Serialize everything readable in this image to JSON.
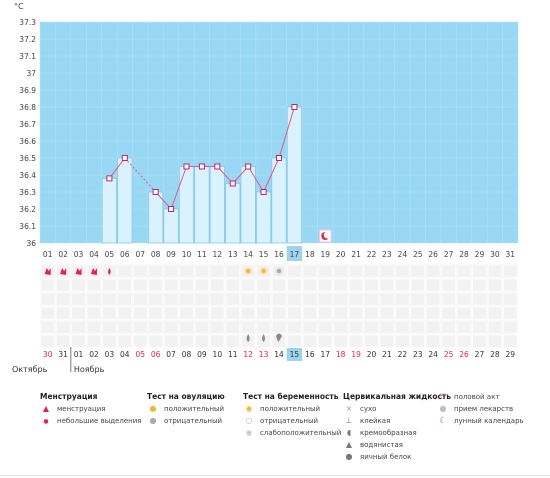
{
  "chart_data": {
    "type": "bar",
    "ylabel": "°C",
    "ylim": [
      36,
      37.3
    ],
    "yticks": [
      "37.3",
      "37.2",
      "37.1",
      "37",
      "36.9",
      "36.8",
      "36.7",
      "36.6",
      "36.5",
      "36.4",
      "36.3",
      "36.2",
      "36.1",
      "36"
    ],
    "cycle_days": [
      "01",
      "02",
      "03",
      "04",
      "05",
      "06",
      "07",
      "08",
      "09",
      "10",
      "11",
      "12",
      "13",
      "14",
      "15",
      "16",
      "17",
      "18",
      "19",
      "20",
      "21",
      "22",
      "23",
      "24",
      "25",
      "26",
      "27",
      "28",
      "29",
      "30",
      "31"
    ],
    "current_day_index": 16,
    "temperatures": [
      null,
      null,
      null,
      null,
      36.38,
      36.5,
      null,
      36.3,
      36.2,
      36.45,
      36.45,
      36.45,
      36.35,
      36.45,
      36.3,
      36.5,
      36.8,
      null,
      null,
      null,
      null,
      null,
      null,
      null,
      null,
      null,
      null,
      null,
      null,
      null,
      null
    ],
    "dates": [
      "30",
      "31",
      "01",
      "02",
      "03",
      "04",
      "05",
      "06",
      "07",
      "08",
      "09",
      "10",
      "11",
      "12",
      "13",
      "14",
      "15",
      "16",
      "17",
      "18",
      "19",
      "20",
      "21",
      "22",
      "23",
      "24",
      "25",
      "26",
      "27",
      "28",
      "29"
    ],
    "date_colors": [
      "#e8214b",
      "#333333",
      "#333333",
      "#333333",
      "#333333",
      "#333333",
      "#e8214b",
      "#e8214b",
      "#333333",
      "#333333",
      "#333333",
      "#333333",
      "#333333",
      "#e8214b",
      "#e8214b",
      "#333333",
      "#333333",
      "#333333",
      "#333333",
      "#e8214b",
      "#e8214b",
      "#333333",
      "#333333",
      "#333333",
      "#333333",
      "#333333",
      "#e8214b",
      "#e8214b",
      "#333333",
      "#333333",
      "#333333"
    ],
    "months": [
      "Октябрь",
      "Ноябрь"
    ],
    "marks": {
      "menstruation": [
        0,
        1,
        2,
        3
      ],
      "light_discharge": [
        4
      ],
      "ovulation_positive": [
        13,
        14
      ],
      "ovulation_negative": [
        15
      ],
      "cervical_watery": [
        13,
        14
      ],
      "cervical_creamy": [
        15
      ],
      "lunar_calendar": [
        18
      ]
    },
    "colors": {
      "plot_bg": "#98d8f4",
      "bar_fill": "#d9f2fd",
      "bar_stroke": "#7cc3e6",
      "line": "#e05a8a",
      "marker": "#c8216a",
      "today": "#9ed3ee",
      "pink": "#e8214b"
    }
  },
  "legend": {
    "col1": {
      "title": "Менструация",
      "items": [
        {
          "label": "менструация",
          "icon": "drop-icon"
        },
        {
          "label": "небольшие выделения",
          "icon": "small-drop-icon"
        }
      ]
    },
    "col2": {
      "title": "Тест на овуляцию",
      "items": [
        {
          "label": "положительный",
          "icon": "positive-test-icon"
        },
        {
          "label": "отрицательный",
          "icon": "negative-test-icon"
        }
      ]
    },
    "col3": {
      "title": "Тест на беременность",
      "items": [
        {
          "label": "положительный",
          "icon": "positive-pregnancy-icon"
        },
        {
          "label": "отрицательный",
          "icon": "negative-pregnancy-icon"
        },
        {
          "label": "слабоположительный",
          "icon": "weak-positive-icon"
        }
      ]
    },
    "col4": {
      "title": "Цервикальная жидкость",
      "items": [
        {
          "label": "сухо",
          "icon": "dry-icon"
        },
        {
          "label": "клейкая",
          "icon": "sticky-icon"
        },
        {
          "label": "кремообразная",
          "icon": "creamy-icon"
        },
        {
          "label": "водянистая",
          "icon": "watery-icon"
        },
        {
          "label": "яичный белок",
          "icon": "egg-white-icon"
        }
      ]
    },
    "col5": {
      "items": [
        {
          "label": "половой акт",
          "icon": "heart-icon"
        },
        {
          "label": "прием лекарств",
          "icon": "pill-icon"
        },
        {
          "label": "лунный календарь",
          "icon": "moon-icon"
        }
      ]
    }
  }
}
